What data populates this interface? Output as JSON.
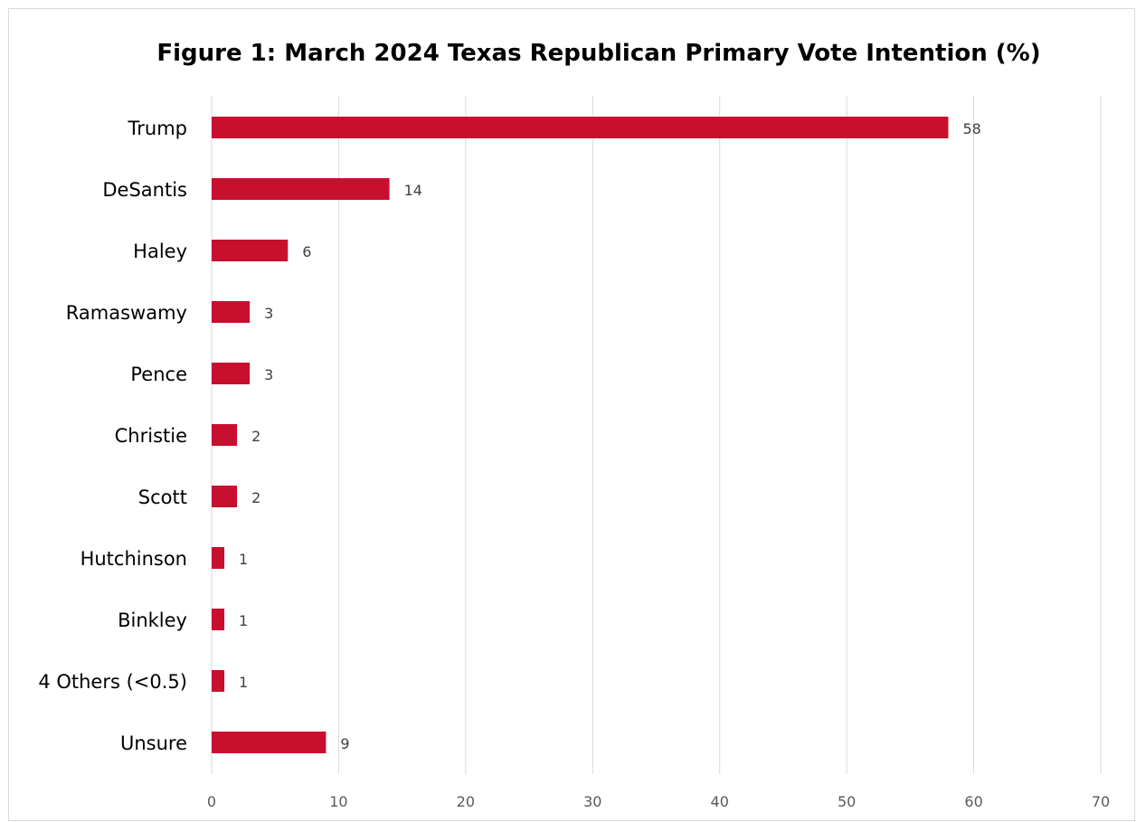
{
  "chart_data": {
    "type": "bar",
    "orientation": "horizontal",
    "title": "Figure 1: March 2024 Texas Republican Primary Vote Intention (%)",
    "xlabel": "",
    "ylabel": "",
    "categories": [
      "Trump",
      "DeSantis",
      "Haley",
      "Ramaswamy",
      "Pence",
      "Christie",
      "Scott",
      "Hutchinson",
      "Binkley",
      "4 Others (<0.5)",
      "Unsure"
    ],
    "values": [
      58,
      14,
      6,
      3,
      3,
      2,
      2,
      1,
      1,
      1,
      9
    ],
    "data_labels": [
      "58",
      "14",
      "6",
      "3",
      "3",
      "2",
      "2",
      "1",
      "1",
      "1",
      "9"
    ],
    "xlim": [
      0,
      70
    ],
    "x_ticks": [
      0,
      10,
      20,
      30,
      40,
      50,
      60,
      70
    ],
    "x_tick_labels": [
      "0",
      "10",
      "20",
      "30",
      "40",
      "50",
      "60",
      "70"
    ],
    "grid": "vertical",
    "legend": "none",
    "bar_color": "#c8102e"
  }
}
